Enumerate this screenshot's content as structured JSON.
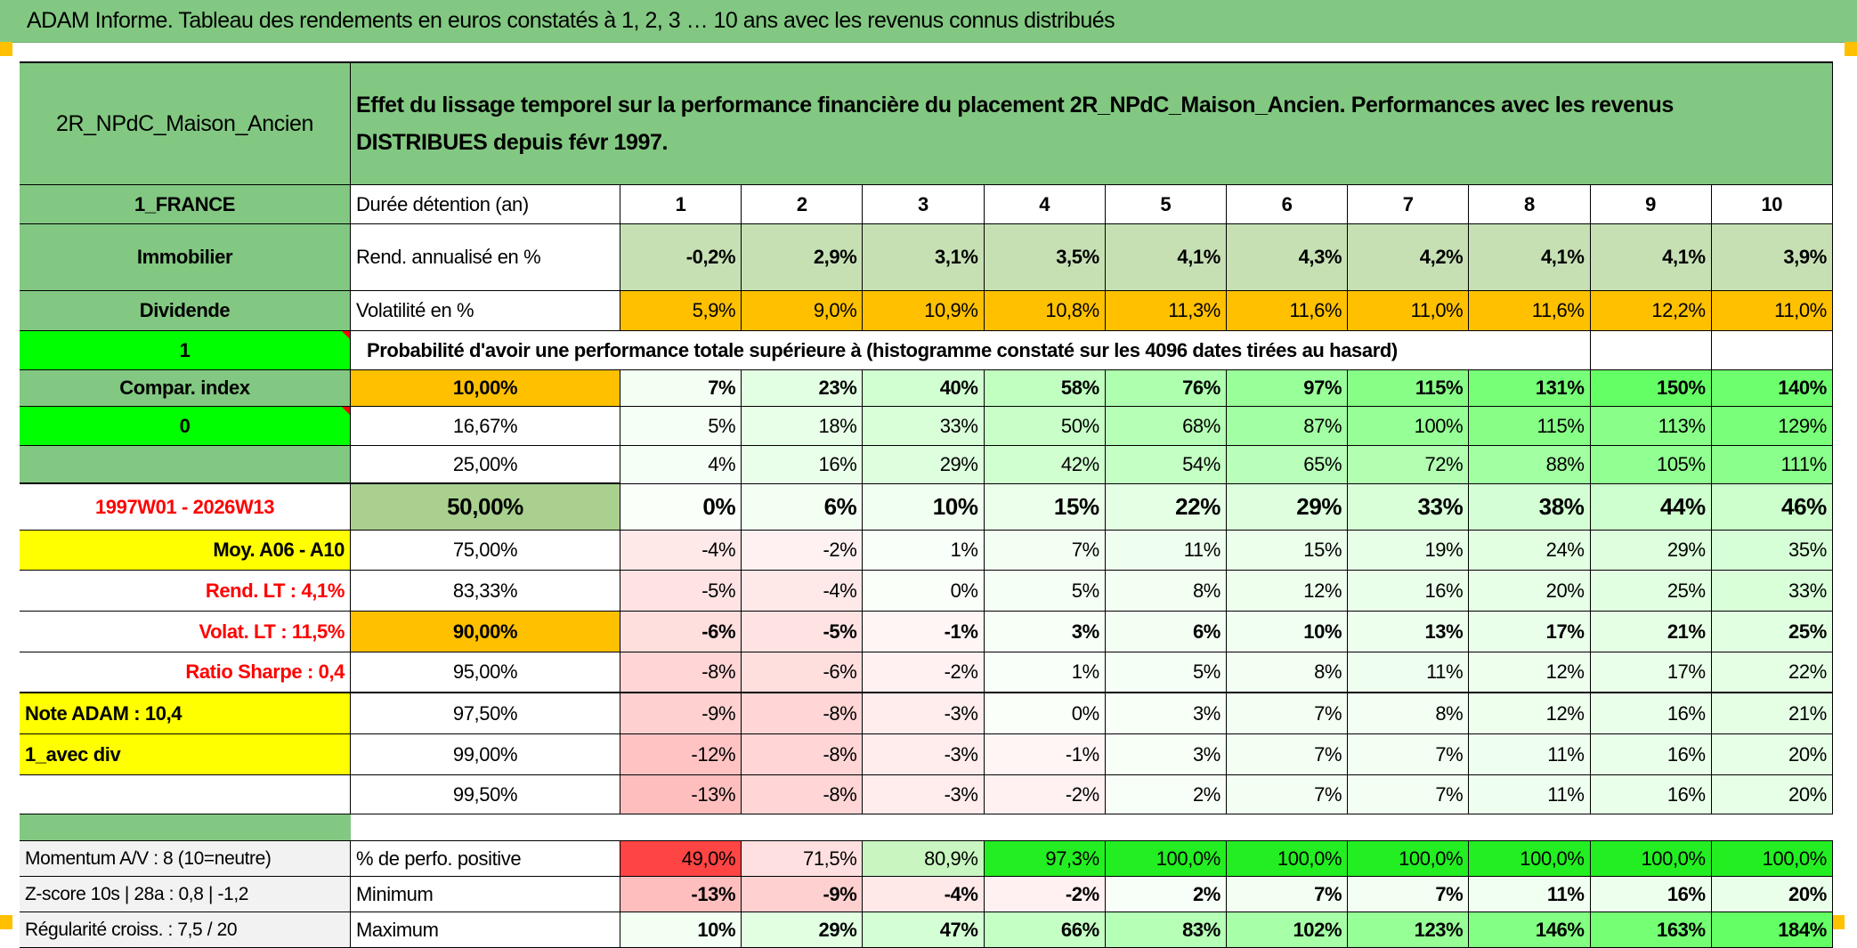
{
  "title": "ADAM Informe. Tableau des rendements en euros constatés à 1, 2, 3 … 10 ans avec les revenus connus distribués",
  "header": {
    "asset": "2R_NPdC_Maison_Ancien",
    "description": "Effet du lissage temporel sur la performance financière du placement 2R_NPdC_Maison_Ancien. Performances avec les revenus DISTRIBUES depuis févr 1997."
  },
  "summary_rows": [
    {
      "left": "1_FRANCE",
      "label": "Durée détention (an)",
      "values": [
        "1",
        "2",
        "3",
        "4",
        "5",
        "6",
        "7",
        "8",
        "9",
        "10"
      ]
    },
    {
      "left": "Immobilier",
      "label": "Rend. annualisé en %",
      "values": [
        "-0,2%",
        "2,9%",
        "3,1%",
        "3,5%",
        "4,1%",
        "4,3%",
        "4,2%",
        "4,1%",
        "4,1%",
        "3,9%"
      ]
    },
    {
      "left": "Dividende",
      "label": "Volatilité en %",
      "values": [
        "5,9%",
        "9,0%",
        "10,9%",
        "10,8%",
        "11,3%",
        "11,6%",
        "11,0%",
        "11,6%",
        "12,2%",
        "11,0%"
      ]
    }
  ],
  "probability": {
    "left": "1",
    "caption": "Probabilité d'avoir une performance totale supérieure à (histogramme constaté sur les 4096 dates tirées au hasard)"
  },
  "prob_rows": [
    {
      "left": "Compar. index",
      "level": "10,00%",
      "values": [
        "7%",
        "23%",
        "40%",
        "58%",
        "76%",
        "97%",
        "115%",
        "131%",
        "150%",
        "140%"
      ]
    },
    {
      "left": "0",
      "level": "16,67%",
      "values": [
        "5%",
        "18%",
        "33%",
        "50%",
        "68%",
        "87%",
        "100%",
        "115%",
        "113%",
        "129%"
      ]
    },
    {
      "left": "",
      "level": "25,00%",
      "values": [
        "4%",
        "16%",
        "29%",
        "42%",
        "54%",
        "65%",
        "72%",
        "88%",
        "105%",
        "111%"
      ]
    },
    {
      "left": "1997W01 - 2026W13",
      "level": "50,00%",
      "values": [
        "0%",
        "6%",
        "10%",
        "15%",
        "22%",
        "29%",
        "33%",
        "38%",
        "44%",
        "46%"
      ]
    },
    {
      "left": "Moy. A06 - A10",
      "level": "75,00%",
      "values": [
        "-4%",
        "-2%",
        "1%",
        "7%",
        "11%",
        "15%",
        "19%",
        "24%",
        "29%",
        "35%"
      ]
    },
    {
      "left": "Rend. LT :   4,1%",
      "level": "83,33%",
      "values": [
        "-5%",
        "-4%",
        "0%",
        "5%",
        "8%",
        "12%",
        "16%",
        "20%",
        "25%",
        "33%"
      ]
    },
    {
      "left": "Volat. LT :   11,5%",
      "level": "90,00%",
      "values": [
        "-6%",
        "-5%",
        "-1%",
        "3%",
        "6%",
        "10%",
        "13%",
        "17%",
        "21%",
        "25%"
      ]
    },
    {
      "left": "Ratio Sharpe :   0,4",
      "level": "95,00%",
      "values": [
        "-8%",
        "-6%",
        "-2%",
        "1%",
        "5%",
        "8%",
        "11%",
        "12%",
        "17%",
        "22%"
      ]
    },
    {
      "left": "Note ADAM : 10,4",
      "level": "97,50%",
      "values": [
        "-9%",
        "-8%",
        "-3%",
        "0%",
        "3%",
        "7%",
        "8%",
        "12%",
        "16%",
        "21%"
      ]
    },
    {
      "left": "1_avec div",
      "level": "99,00%",
      "values": [
        "-12%",
        "-8%",
        "-3%",
        "-1%",
        "3%",
        "7%",
        "7%",
        "11%",
        "16%",
        "20%"
      ]
    },
    {
      "left": "",
      "level": "99,50%",
      "values": [
        "-13%",
        "-8%",
        "-3%",
        "-2%",
        "2%",
        "7%",
        "7%",
        "11%",
        "16%",
        "20%"
      ]
    }
  ],
  "stats_rows": [
    {
      "left": "Momentum A/V : 8 (10=neutre)",
      "label": "% de perfo. positive",
      "values": [
        "49,0%",
        "71,5%",
        "80,9%",
        "97,3%",
        "100,0%",
        "100,0%",
        "100,0%",
        "100,0%",
        "100,0%",
        "100,0%"
      ]
    },
    {
      "left": "Z-score 10s | 28a : 0,8 | -1,2",
      "label": "Minimum",
      "values": [
        "-13%",
        "-9%",
        "-4%",
        "-2%",
        "2%",
        "7%",
        "7%",
        "11%",
        "16%",
        "20%"
      ]
    },
    {
      "left": "Régularité croiss. : 7,5 / 20",
      "label": "Maximum",
      "values": [
        "10%",
        "29%",
        "47%",
        "66%",
        "83%",
        "102%",
        "123%",
        "146%",
        "163%",
        "184%"
      ]
    }
  ],
  "colors": {
    "header_green": "#82c882",
    "orange": "#ffc000",
    "bright_green": "#00ff00",
    "yellow": "#ffff00",
    "red_text": "#ff0000"
  }
}
